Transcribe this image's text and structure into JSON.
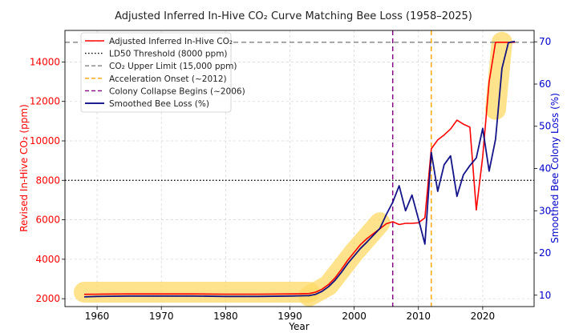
{
  "chart_data": {
    "type": "line",
    "title": "Adjusted Inferred In-Hive CO₂ Curve Matching Bee Loss (1958–2025)",
    "xlabel": "Year",
    "ylabel_left": "Revised In-Hive CO₂ (ppm)",
    "ylabel_right": "Smoothed Bee Colony Loss (%)",
    "xlim": [
      1955,
      2028
    ],
    "ylim_left": [
      1600,
      15600
    ],
    "ylim_right": [
      7.3,
      72.7
    ],
    "x_ticks": [
      1960,
      1970,
      1980,
      1990,
      2000,
      2010,
      2020
    ],
    "y_ticks_left": [
      2000,
      4000,
      6000,
      8000,
      10000,
      12000,
      14000
    ],
    "y_ticks_right": [
      10,
      20,
      30,
      40,
      50,
      60,
      70
    ],
    "grid": true,
    "legend_location": "upper-left",
    "colors": {
      "co2": "#ff0000",
      "ld50": "#000000",
      "upper_limit": "#808080",
      "acceleration": "#ffa500",
      "collapse": "#800080",
      "bee_loss": "#000080",
      "highlight": "#ffd966",
      "left_axis": "#ff0000",
      "right_axis": "#0000cc"
    },
    "series": [
      {
        "name": "Adjusted Inferred In-Hive CO₂",
        "axis": "left",
        "x": [
          1958,
          1960,
          1965,
          1970,
          1975,
          1980,
          1985,
          1990,
          1993,
          1994,
          1995,
          1996,
          1997,
          1998,
          1999,
          2000,
          2001,
          2002,
          2003,
          2004,
          2005,
          2006,
          2007,
          2008,
          2009,
          2010,
          2011,
          2012,
          2013,
          2014,
          2015,
          2016,
          2017,
          2018,
          2019,
          2020,
          2021,
          2022,
          2023,
          2024,
          2025
        ],
        "values": [
          2220,
          2230,
          2240,
          2240,
          2240,
          2230,
          2230,
          2240,
          2260,
          2330,
          2480,
          2720,
          3050,
          3480,
          3950,
          4350,
          4750,
          5050,
          5300,
          5550,
          5800,
          5900,
          5760,
          5820,
          5820,
          5850,
          6100,
          9600,
          10050,
          10300,
          10600,
          11050,
          10850,
          10700,
          6500,
          9200,
          13000,
          15000,
          15000,
          15000,
          15000
        ]
      },
      {
        "name": "Smoothed Bee Loss (%)",
        "axis": "right",
        "x": [
          1958,
          1960,
          1965,
          1970,
          1975,
          1980,
          1985,
          1990,
          1993,
          1994,
          1995,
          1996,
          1997,
          1998,
          1999,
          2000,
          2001,
          2002,
          2003,
          2004,
          2005,
          2006,
          2007,
          2008,
          2009,
          2010,
          2011,
          2012,
          2013,
          2014,
          2015,
          2016,
          2017,
          2018,
          2019,
          2020,
          2021,
          2022,
          2023,
          2024,
          2025
        ],
        "values": [
          9.6,
          9.7,
          9.8,
          9.8,
          9.8,
          9.7,
          9.7,
          9.8,
          9.9,
          10.2,
          10.9,
          12.0,
          13.5,
          15.4,
          17.5,
          19.3,
          21.1,
          22.6,
          24.2,
          25.8,
          29.1,
          32.0,
          35.9,
          30.0,
          33.7,
          28.0,
          22.1,
          43.8,
          34.6,
          40.9,
          43.0,
          33.4,
          38.5,
          40.7,
          42.5,
          49.5,
          39.4,
          46.9,
          63.7,
          69.8,
          70.1
        ]
      }
    ],
    "reference_lines": [
      {
        "name": "LD50 Threshold (8000 ppm)",
        "orientation": "horizontal",
        "value": 8000,
        "style": "dotted"
      },
      {
        "name": "CO₂ Upper Limit (15,000 ppm)",
        "orientation": "horizontal",
        "value": 15000,
        "style": "dashed"
      },
      {
        "name": "Acceleration Onset (~2012)",
        "orientation": "vertical",
        "value": 2012,
        "style": "dashed"
      },
      {
        "name": "Colony Collapse Begins (~2006)",
        "orientation": "vertical",
        "value": 2006,
        "style": "dashed"
      }
    ],
    "highlights": [
      {
        "x": [
          1958,
          1993
        ],
        "values": [
          2330,
          2330
        ]
      },
      {
        "x": [
          1993,
          1996,
          2000,
          2004
        ],
        "values": [
          2130,
          2680,
          4350,
          5850
        ]
      },
      {
        "x": [
          2022,
          2023
        ],
        "values": [
          11600,
          15000
        ]
      }
    ],
    "legend": [
      "Adjusted Inferred In-Hive CO₂",
      "LD50 Threshold (8000 ppm)",
      "CO₂ Upper Limit (15,000 ppm)",
      "Acceleration Onset (~2012)",
      "Colony Collapse Begins (~2006)",
      "Smoothed Bee Loss (%)"
    ]
  }
}
